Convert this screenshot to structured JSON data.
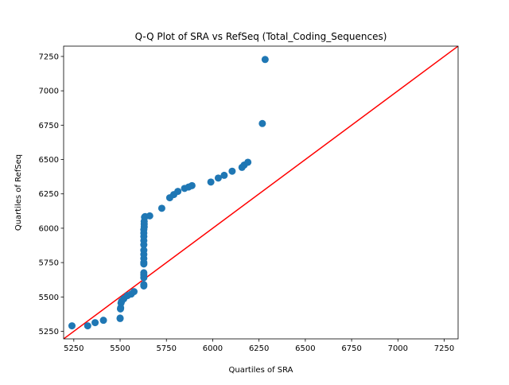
{
  "chart_data": {
    "type": "scatter",
    "title": "Q-Q Plot of SRA vs RefSeq (Total_Coding_Sequences)",
    "xlabel": "Quartiles of SRA",
    "ylabel": "Quartiles of RefSeq",
    "xlim": [
      5195,
      7325
    ],
    "ylim": [
      5195,
      7325
    ],
    "xticks": [
      5250,
      5500,
      5750,
      6000,
      6250,
      6500,
      6750,
      7000,
      7250
    ],
    "yticks": [
      5250,
      5500,
      5750,
      6000,
      6250,
      6500,
      6750,
      7000,
      7250
    ],
    "grid": false,
    "reference_line": {
      "x": [
        5195,
        7325
      ],
      "y": [
        5195,
        7325
      ],
      "color": "#ff0000"
    },
    "point_color": "#1f77b4",
    "points": {
      "x": [
        5240,
        5325,
        5365,
        5410,
        5500,
        5500,
        5502,
        5503,
        5505,
        5508,
        5520,
        5540,
        5560,
        5575,
        5628,
        5628,
        5628,
        5628,
        5628,
        5628,
        5628,
        5628,
        5628,
        5628,
        5628,
        5628,
        5628,
        5628,
        5628,
        5630,
        5630,
        5630,
        5632,
        5635,
        5660,
        5725,
        5768,
        5790,
        5812,
        5848,
        5870,
        5888,
        5990,
        6030,
        6062,
        6105,
        6158,
        6170,
        6190,
        6268,
        6283
      ],
      "y": [
        5290,
        5290,
        5313,
        5330,
        5343,
        5346,
        5413,
        5421,
        5456,
        5469,
        5487,
        5510,
        5521,
        5539,
        5580,
        5590,
        5640,
        5660,
        5676,
        5740,
        5750,
        5780,
        5810,
        5840,
        5880,
        5910,
        5940,
        5965,
        5990,
        6010,
        6030,
        6050,
        6080,
        6085,
        6090,
        6145,
        6222,
        6245,
        6268,
        6290,
        6300,
        6310,
        6336,
        6365,
        6385,
        6415,
        6443,
        6460,
        6480,
        6762,
        7228
      ]
    }
  }
}
